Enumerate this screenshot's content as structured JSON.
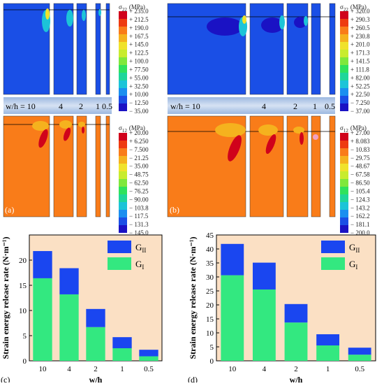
{
  "panels": [
    {
      "id": "a",
      "panel_label": "(a)",
      "wh_prefix": "w/h = 10",
      "wh_labels": [
        "4",
        "2",
        "1",
        "0.5"
      ],
      "legend_top": {
        "title_sym": "σ",
        "title_sub": "22",
        "unit": "(MPa)",
        "ticks": [
          "+ 235.0",
          "+ 212.5",
          "+ 190.0",
          "+ 167.5",
          "+ 145.0",
          "+ 122.5",
          "+ 100.0",
          "+ 77.50",
          "+ 55.00",
          "+ 32.50",
          "+ 10.00",
          "− 12.50",
          "− 35.00"
        ]
      },
      "legend_bottom": {
        "title_sym": "σ",
        "title_sub": "12",
        "unit": "(MPa)",
        "ticks": [
          "+ 20.00",
          "+ 6.250",
          "− 7.500",
          "− 21.25",
          "− 35.00",
          "− 48.75",
          "− 62.50",
          "− 76.25",
          "− 90.00",
          "− 103.8",
          "− 117.5",
          "− 131.3",
          "− 145.0"
        ]
      }
    },
    {
      "id": "b",
      "panel_label": "(b)",
      "wh_prefix": "w/h = 10",
      "wh_labels": [
        "4",
        "2",
        "1",
        "0.5"
      ],
      "legend_top": {
        "title_sym": "σ",
        "title_sub": "22",
        "unit": "(MPa)",
        "ticks": [
          "+ 320.0",
          "+ 290.3",
          "+ 260.5",
          "+ 230.8",
          "+ 201.0",
          "+ 171.3",
          "+ 141.5",
          "+ 111.8",
          "+ 82.00",
          "+ 52.25",
          "+ 22.50",
          "− 7.250",
          "− 37.00"
        ]
      },
      "legend_bottom": {
        "title_sym": "σ",
        "title_sub": "12",
        "unit": "(MPa)",
        "ticks": [
          "+ 27.00",
          "+ 8.083",
          "− 10.83",
          "− 29.75",
          "− 48.67",
          "− 67.58",
          "− 86.50",
          "− 105.4",
          "− 124.3",
          "− 143.2",
          "− 162.2",
          "− 181.1",
          "− 200.0"
        ]
      }
    }
  ],
  "colorbar_colors": [
    "#d0021b",
    "#ee3a10",
    "#f97c19",
    "#f5b21e",
    "#f0e22b",
    "#c8ec2e",
    "#7fe83c",
    "#2fe25d",
    "#1fd69a",
    "#1cc4d8",
    "#1a8ff0",
    "#1a4fe6",
    "#1a12c4"
  ],
  "chart_data": [
    {
      "type": "bar",
      "stacked": true,
      "panel_label": "(c)",
      "categories": [
        "10",
        "4",
        "2",
        "1",
        "0.5"
      ],
      "xlabel": "w/h",
      "ylabel": "Strain energy release rate (N·m⁻¹)",
      "ylim": [
        0,
        25
      ],
      "yticks": [
        0,
        5,
        10,
        15,
        20
      ],
      "series": [
        {
          "name": "GI",
          "values": [
            16.4,
            13.2,
            6.7,
            2.5,
            0.9
          ],
          "color": "#33e880"
        },
        {
          "name": "GII",
          "values": [
            5.4,
            5.2,
            3.6,
            2.2,
            1.3
          ],
          "color": "#1a46f0"
        }
      ],
      "legend": [
        {
          "main": "G",
          "sub": "II",
          "color": "#1a46f0"
        },
        {
          "main": "G",
          "sub": "I",
          "color": "#33e880"
        }
      ],
      "background": "#fbe0c4"
    },
    {
      "type": "bar",
      "stacked": true,
      "panel_label": "(d)",
      "categories": [
        "10",
        "4",
        "2",
        "1",
        "0.5"
      ],
      "xlabel": "w/h",
      "ylabel": "Strain energy release rate (N·m⁻¹)",
      "ylim": [
        0,
        45
      ],
      "yticks": [
        0,
        5,
        10,
        15,
        20,
        25,
        30,
        35,
        40,
        45
      ],
      "series": [
        {
          "name": "GI",
          "values": [
            30.6,
            25.5,
            13.7,
            5.5,
            2.2
          ],
          "color": "#33e880"
        },
        {
          "name": "GII",
          "values": [
            11.2,
            9.6,
            6.6,
            4.0,
            2.5
          ],
          "color": "#1a46f0"
        }
      ],
      "legend": [
        {
          "main": "G",
          "sub": "II",
          "color": "#1a46f0"
        },
        {
          "main": "G",
          "sub": "I",
          "color": "#33e880"
        }
      ],
      "background": "#fbe0c4"
    }
  ]
}
